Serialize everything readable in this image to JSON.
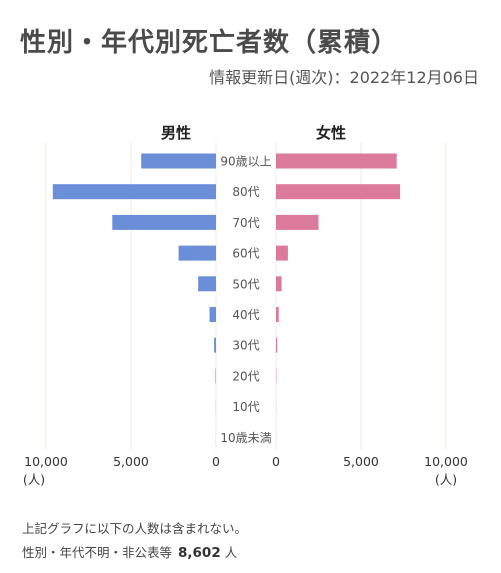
{
  "header": {
    "title": "性別・年代別死亡者数（累積）",
    "updated": "情報更新日(週次)：2022年12月06日"
  },
  "chart_data": {
    "type": "bar",
    "orientation": "horizontal-butterfly",
    "categories": [
      "90歳以上",
      "80代",
      "70代",
      "60代",
      "50代",
      "40代",
      "30代",
      "20代",
      "10代",
      "10歳未満"
    ],
    "series": [
      {
        "name": "男性",
        "color": "#6a8fd8",
        "values": [
          4400,
          9600,
          6100,
          2200,
          1050,
          380,
          110,
          30,
          8,
          4
        ]
      },
      {
        "name": "女性",
        "color": "#dc7a9b",
        "values": [
          7100,
          7300,
          2500,
          700,
          330,
          160,
          70,
          25,
          6,
          3
        ]
      }
    ],
    "xlim": [
      0,
      10000
    ],
    "ticks": [
      10000,
      5000,
      0
    ],
    "tick_labels": [
      "10,000",
      "5,000",
      "0"
    ],
    "unit_label": "(人)",
    "gridlines": true
  },
  "note": {
    "line1": "上記グラフに以下の人数は含まれない。",
    "line2_label": "性別・年代不明・非公表等",
    "line2_value": "8,602",
    "line2_unit": "人"
  }
}
